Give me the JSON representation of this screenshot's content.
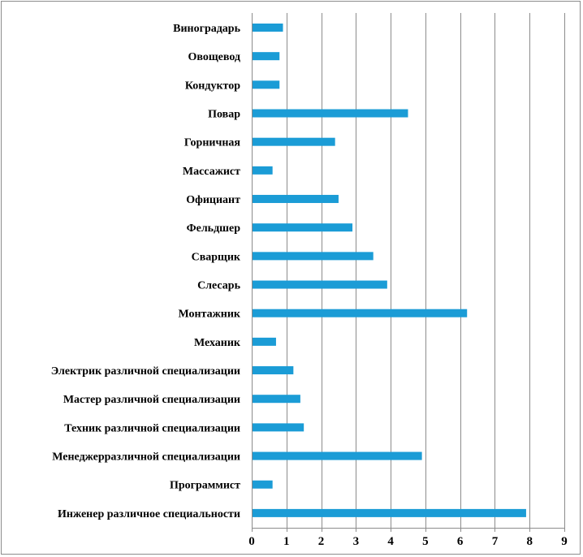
{
  "chart_data": {
    "type": "bar",
    "orientation": "horizontal",
    "title": "",
    "xlabel": "",
    "ylabel": "",
    "xlim": [
      0,
      9
    ],
    "x_ticks": [
      0,
      1,
      2,
      3,
      4,
      5,
      6,
      7,
      8,
      9
    ],
    "grid": "vertical",
    "legend": "none",
    "bar_color": "#1b9cd6",
    "categories": [
      "Виноградарь",
      "Овощевод",
      "Кондуктор",
      "Повар",
      "Горничная",
      "Массажист",
      "Официант",
      "Фельдшер",
      "Сварщик",
      "Слесарь",
      "Монтажник",
      "Механик",
      "Электрик различной специализации",
      "Мастер различной специализации",
      "Техник различной специализации",
      "Менеджерразличной специализации",
      "Программист",
      "Инженер различное специальности"
    ],
    "values": [
      0.9,
      0.8,
      0.8,
      4.5,
      2.4,
      0.6,
      2.5,
      2.9,
      3.5,
      3.9,
      6.2,
      0.7,
      1.2,
      1.4,
      1.5,
      4.9,
      0.6,
      7.9
    ]
  }
}
